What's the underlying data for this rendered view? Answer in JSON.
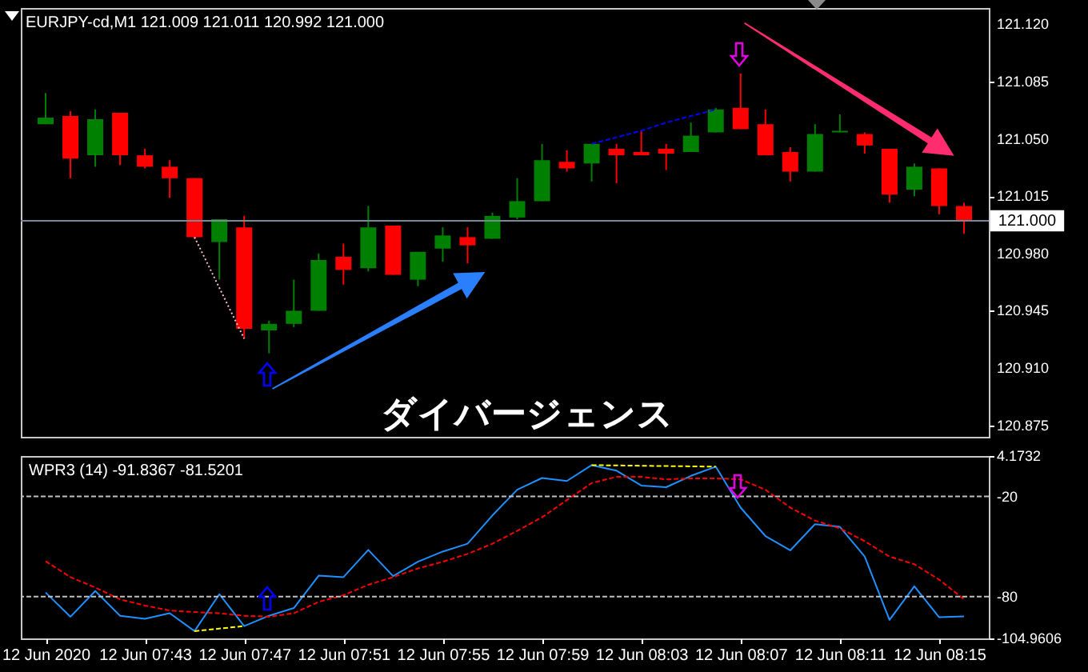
{
  "chart_data": [
    {
      "type": "candlestick",
      "title": "EURJPY-cd,M1 121.009 121.011 120.992 121.000",
      "categories": [
        null,
        null,
        null,
        null,
        null,
        null,
        null,
        null,
        null,
        null,
        null,
        null,
        null,
        null,
        null,
        null,
        null,
        null,
        null,
        null,
        null,
        null,
        null,
        null,
        null,
        null,
        null,
        null,
        null,
        null,
        null,
        null,
        null,
        null,
        null,
        null,
        null,
        null
      ],
      "ohlc": [
        [
          121.059,
          121.078,
          121.059,
          121.063
        ],
        [
          121.064,
          121.067,
          121.026,
          121.038
        ],
        [
          121.04,
          121.068,
          121.033,
          121.062
        ],
        [
          121.066,
          121.066,
          121.034,
          121.04
        ],
        [
          121.04,
          121.044,
          121.032,
          121.033
        ],
        [
          121.033,
          121.037,
          121.014,
          121.026
        ],
        [
          121.026,
          121.026,
          120.989,
          120.99
        ],
        [
          120.987,
          121.001,
          120.964,
          121.001
        ],
        [
          120.996,
          121.003,
          120.928,
          120.934
        ],
        [
          120.933,
          120.939,
          120.919,
          120.937
        ],
        [
          120.937,
          120.964,
          120.935,
          120.945
        ],
        [
          120.945,
          120.98,
          120.945,
          120.976
        ],
        [
          120.978,
          120.986,
          120.961,
          120.97
        ],
        [
          120.971,
          121.009,
          120.969,
          120.996
        ],
        [
          120.997,
          120.997,
          120.967,
          120.967
        ],
        [
          120.964,
          120.981,
          120.96,
          120.981
        ],
        [
          120.983,
          120.996,
          120.975,
          120.991
        ],
        [
          120.99,
          120.996,
          120.974,
          120.985
        ],
        [
          120.989,
          121.005,
          120.989,
          121.003
        ],
        [
          121.002,
          121.026,
          121.001,
          121.012
        ],
        [
          121.012,
          121.047,
          121.012,
          121.037
        ],
        [
          121.036,
          121.043,
          121.03,
          121.032
        ],
        [
          121.035,
          121.047,
          121.024,
          121.047
        ],
        [
          121.044,
          121.047,
          121.023,
          121.04
        ],
        [
          121.042,
          121.055,
          121.04,
          121.04
        ],
        [
          121.044,
          121.047,
          121.031,
          121.041
        ],
        [
          121.042,
          121.06,
          121.042,
          121.052
        ],
        [
          121.054,
          121.069,
          121.054,
          121.068
        ],
        [
          121.069,
          121.09,
          121.056,
          121.056
        ],
        [
          121.059,
          121.068,
          121.04,
          121.04
        ],
        [
          121.042,
          121.045,
          121.024,
          121.03
        ],
        [
          121.03,
          121.059,
          121.03,
          121.053
        ],
        [
          121.054,
          121.065,
          121.054,
          121.055
        ],
        [
          121.053,
          121.054,
          121.041,
          121.046
        ],
        [
          121.044,
          121.044,
          121.011,
          121.016
        ],
        [
          121.019,
          121.035,
          121.015,
          121.033
        ],
        [
          121.032,
          121.032,
          121.004,
          121.009
        ],
        [
          121.009,
          121.011,
          120.992,
          121.0
        ]
      ],
      "colors": [
        "#008000",
        "#ff0000",
        "#008000",
        "#ff0000",
        "#ff0000",
        "#ff0000",
        "#ff0000",
        "#008000",
        "#ff0000",
        "#008000",
        "#008000",
        "#008000",
        "#ff0000",
        "#008000",
        "#ff0000",
        "#008000",
        "#008000",
        "#ff0000",
        "#008000",
        "#008000",
        "#008000",
        "#ff0000",
        "#008000",
        "#ff0000",
        "#ff0000",
        "#ff0000",
        "#008000",
        "#008000",
        "#ff0000",
        "#ff0000",
        "#ff0000",
        "#008000",
        "#008000",
        "#ff0000",
        "#ff0000",
        "#008000",
        "#ff0000",
        "#ff0000"
      ],
      "series": [
        {
          "type": "line",
          "values": [
            null,
            null,
            null,
            null,
            null,
            null,
            120.99,
            120.959,
            120.928,
            null,
            null,
            null,
            null,
            null,
            null,
            null,
            null,
            null,
            null,
            null,
            null,
            null,
            null,
            null,
            null,
            null,
            null,
            null,
            null,
            null,
            null,
            null,
            null,
            null,
            null,
            null,
            null,
            null
          ],
          "color": "#ffc0cb",
          "line_style": "dotted"
        },
        {
          "type": "line",
          "values": [
            null,
            null,
            null,
            null,
            null,
            null,
            null,
            null,
            null,
            null,
            null,
            null,
            null,
            null,
            null,
            null,
            null,
            null,
            null,
            null,
            null,
            null,
            121.047,
            121.051,
            121.055,
            121.06,
            121.064,
            121.068,
            null,
            null,
            null,
            null,
            null,
            null,
            null,
            null,
            null,
            null
          ],
          "color": "#0000ff",
          "line_style": "dashed"
        }
      ],
      "ylim": [
        120.868,
        121.13
      ],
      "yticks": [
        {
          "value": 120.875,
          "label": "120.875"
        },
        {
          "value": 120.91,
          "label": "120.910"
        },
        {
          "value": 120.945,
          "label": "120.945"
        },
        {
          "value": 120.98,
          "label": "120.980"
        },
        {
          "value": 121.015,
          "label": "121.015"
        },
        {
          "value": 121.05,
          "label": "121.050"
        },
        {
          "value": 121.085,
          "label": "121.085"
        },
        {
          "value": 121.12,
          "label": "121.120"
        }
      ],
      "ref_lines": [
        {
          "axis": "y",
          "value": 121.0,
          "label": "121.000",
          "color": "#778899"
        }
      ],
      "annotations": [
        "ダイバージェンス"
      ],
      "tick_labels": "y",
      "marker": "none"
    },
    {
      "type": "line",
      "title": "WPR3 (14) -91.8367 -81.5201",
      "x": [
        "2020-06-12T07:39",
        "2020-06-12T07:40",
        "2020-06-12T07:41",
        "2020-06-12T07:42",
        "2020-06-12T07:43",
        "2020-06-12T07:44",
        "2020-06-12T07:45",
        "2020-06-12T07:46",
        "2020-06-12T07:47",
        "2020-06-12T07:48",
        "2020-06-12T07:49",
        "2020-06-12T07:50",
        "2020-06-12T07:51",
        "2020-06-12T07:52",
        "2020-06-12T07:53",
        "2020-06-12T07:54",
        "2020-06-12T07:55",
        "2020-06-12T07:56",
        "2020-06-12T07:57",
        "2020-06-12T07:58",
        "2020-06-12T07:59",
        "2020-06-12T08:00",
        "2020-06-12T08:01",
        "2020-06-12T08:02",
        "2020-06-12T08:03",
        "2020-06-12T08:04",
        "2020-06-12T08:05",
        "2020-06-12T08:06",
        "2020-06-12T08:07",
        "2020-06-12T08:08",
        "2020-06-12T08:09",
        "2020-06-12T08:10",
        "2020-06-12T08:11",
        "2020-06-12T08:12",
        "2020-06-12T08:13",
        "2020-06-12T08:14",
        "2020-06-12T08:15",
        "2020-06-12T08:16"
      ],
      "series": [
        {
          "color": "#1e90ff",
          "line_style": "solid",
          "values": [
            -77.5,
            -92.0,
            -76.6,
            -91.4,
            -93.2,
            -89.9,
            -100.6,
            -78.5,
            -97.6,
            -91.4,
            -86.8,
            -67.4,
            -68.3,
            -52.0,
            -67.7,
            -59.1,
            -53.0,
            -48.3,
            -31.4,
            -16.0,
            -9.0,
            -10.8,
            -1.3,
            -4.6,
            -13.5,
            -14.5,
            -7.7,
            -2.2,
            -26.7,
            -43.7,
            -52.3,
            -36.6,
            -38.2,
            -56.0,
            -93.9,
            -73.8,
            -92.3,
            -91.8
          ]
        },
        {
          "color": "#ff0000",
          "line_style": "dashed",
          "values": [
            -58.8,
            -68.3,
            -74.5,
            -81.6,
            -85.3,
            -88.3,
            -89.2,
            -89.9,
            -91.4,
            -92.0,
            -89.9,
            -83.1,
            -79.1,
            -72.9,
            -68.3,
            -63.1,
            -59.1,
            -54.4,
            -48.3,
            -40.6,
            -32.5,
            -22.2,
            -12.0,
            -8.3,
            -8.3,
            -9.8,
            -9.2,
            -9.2,
            -9.8,
            -16.0,
            -26.7,
            -34.5,
            -39.1,
            -46.8,
            -56.0,
            -60.6,
            -69.8,
            -81.5
          ]
        },
        {
          "color": "#ffff00",
          "line_style": "dashed",
          "x": [
            "2020-06-12T07:45",
            "2020-06-12T07:47"
          ],
          "values": [
            -100.6,
            -97.6
          ]
        },
        {
          "color": "#ffff00",
          "line_style": "dashed",
          "x": [
            "2020-06-12T08:01",
            "2020-06-12T08:06"
          ],
          "values": [
            -1.3,
            -2.2
          ]
        }
      ],
      "xlim": [
        "2020-06-12T07:38",
        "2020-06-12T08:17"
      ],
      "xticks": [
        {
          "value": "2020-06-12T07:39",
          "label": "12 Jun 2020"
        },
        {
          "value": "2020-06-12T07:43",
          "label": "12 Jun 07:43"
        },
        {
          "value": "2020-06-12T07:47",
          "label": "12 Jun 07:47"
        },
        {
          "value": "2020-06-12T07:51",
          "label": "12 Jun 07:51"
        },
        {
          "value": "2020-06-12T07:55",
          "label": "12 Jun 07:55"
        },
        {
          "value": "2020-06-12T07:59",
          "label": "12 Jun 07:59"
        },
        {
          "value": "2020-06-12T08:03",
          "label": "12 Jun 08:03"
        },
        {
          "value": "2020-06-12T08:07",
          "label": "12 Jun 08:07"
        },
        {
          "value": "2020-06-12T08:11",
          "label": "12 Jun 08:11"
        },
        {
          "value": "2020-06-12T08:15",
          "label": "12 Jun 08:15"
        }
      ],
      "ylim": [
        -104.9606,
        4.1732
      ],
      "yticks": [
        -104.9606,
        -80,
        -20,
        4.1732
      ],
      "ref_lines": [
        {
          "axis": "y",
          "value": -20,
          "color": "#c0c0c0",
          "line_style": "dashed"
        },
        {
          "axis": "y",
          "value": -80,
          "color": "#c0c0c0",
          "line_style": "dashed"
        }
      ],
      "marker": "none"
    }
  ]
}
